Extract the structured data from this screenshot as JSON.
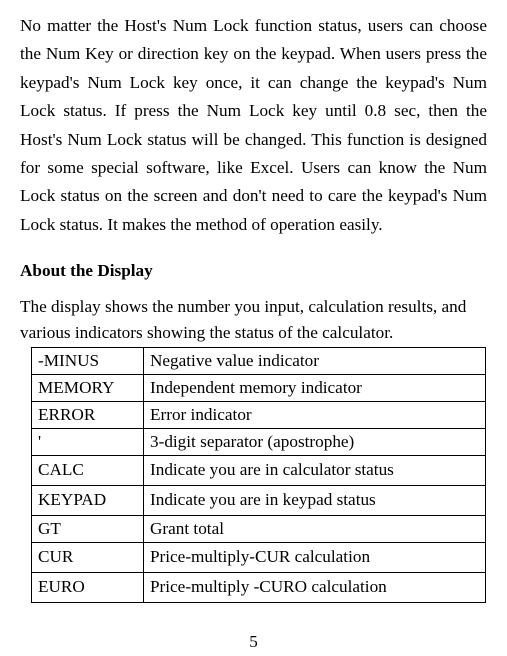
{
  "paragraph": "No matter the Host's Num Lock function status, users can choose the Num Key or direction key on the keypad. When users press the keypad's Num Lock key once, it can change the keypad's Num Lock status. If press the Num Lock key until 0.8 sec, then the Host's Num Lock status will be changed. This function is designed for some special software, like Excel. Users can know the Num Lock status on the screen and don't need to care the keypad's Num Lock status. It makes the method of operation easily.",
  "section_heading": "About the Display",
  "intro_line1": "The display shows the number you input, calculation results, and",
  "intro_line2": "various indicators showing the status of the calculator.",
  "table": {
    "rows": [
      {
        "label": "-MINUS",
        "desc": "Negative value indicator"
      },
      {
        "label": "MEMORY",
        "desc": "Independent memory indicator"
      },
      {
        "label": "ERROR",
        "desc": "Error indicator"
      },
      {
        "label": "'",
        "desc": "3-digit separator (apostrophe)"
      },
      {
        "label": "CALC",
        "desc": "Indicate you are in calculator status"
      },
      {
        "label": "KEYPAD",
        "desc": "Indicate you are in keypad status"
      },
      {
        "label": "GT",
        "desc": "Grant total"
      },
      {
        "label": "CUR",
        "desc": "Price-multiply-CUR calculation"
      },
      {
        "label": "EURO",
        "desc": "Price-multiply -CURO calculation"
      }
    ]
  },
  "page_number": "5"
}
